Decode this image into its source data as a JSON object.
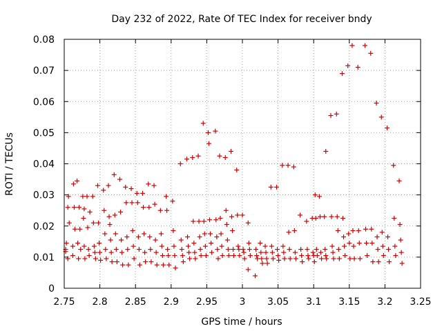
{
  "chart_data": {
    "type": "scatter",
    "title": "Day 232 of 2022, Rate Of TEC Index for receiver bndy",
    "xlabel": "GPS time / hours",
    "ylabel": "ROTI / TECUs",
    "xlim": [
      2.75,
      3.25
    ],
    "ylim": [
      0,
      0.08
    ],
    "xticks": [
      "2.75",
      "2.8",
      "2.85",
      "2.9",
      "2.95",
      "3",
      "3.05",
      "3.1",
      "3.15",
      "3.2",
      "3.25"
    ],
    "yticks": [
      "0",
      "0.01",
      "0.02",
      "0.03",
      "0.04",
      "0.05",
      "0.06",
      "0.07",
      "0.08"
    ],
    "grid": true,
    "marker": "plus",
    "color": "#cc0000",
    "series": [
      {
        "name": "ROTI",
        "points": [
          [
            2.752,
            0.0125
          ],
          [
            2.752,
            0.0118
          ],
          [
            2.755,
            0.0095
          ],
          [
            2.755,
            0.026
          ],
          [
            2.756,
            0.0295
          ],
          [
            2.757,
            0.021
          ],
          [
            2.753,
            0.0145
          ],
          [
            2.762,
            0.0135
          ],
          [
            2.762,
            0.0105
          ],
          [
            2.763,
            0.0335
          ],
          [
            2.764,
            0.026
          ],
          [
            2.765,
            0.019
          ],
          [
            2.768,
            0.0345
          ],
          [
            2.769,
            0.0145
          ],
          [
            2.77,
            0.0095
          ],
          [
            2.771,
            0.026
          ],
          [
            2.772,
            0.019
          ],
          [
            2.773,
            0.0125
          ],
          [
            2.776,
            0.0295
          ],
          [
            2.777,
            0.0225
          ],
          [
            2.778,
            0.0255
          ],
          [
            2.778,
            0.0135
          ],
          [
            2.779,
            0.0095
          ],
          [
            2.782,
            0.0295
          ],
          [
            2.783,
            0.0195
          ],
          [
            2.784,
            0.0125
          ],
          [
            2.785,
            0.0105
          ],
          [
            2.786,
            0.0245
          ],
          [
            2.79,
            0.0295
          ],
          [
            2.791,
            0.021
          ],
          [
            2.792,
            0.0135
          ],
          [
            2.793,
            0.0115
          ],
          [
            2.794,
            0.0095
          ],
          [
            2.797,
            0.033
          ],
          [
            2.798,
            0.021
          ],
          [
            2.799,
            0.0145
          ],
          [
            2.8,
            0.0115
          ],
          [
            2.801,
            0.009
          ],
          [
            2.805,
            0.0315
          ],
          [
            2.806,
            0.025
          ],
          [
            2.807,
            0.0175
          ],
          [
            2.808,
            0.0125
          ],
          [
            2.809,
            0.0095
          ],
          [
            2.812,
            0.033
          ],
          [
            2.813,
            0.023
          ],
          [
            2.814,
            0.0205
          ],
          [
            2.815,
            0.0155
          ],
          [
            2.816,
            0.0115
          ],
          [
            2.817,
            0.0085
          ],
          [
            2.82,
            0.0365
          ],
          [
            2.821,
            0.0235
          ],
          [
            2.822,
            0.0175
          ],
          [
            2.823,
            0.0125
          ],
          [
            2.824,
            0.0085
          ],
          [
            2.828,
            0.035
          ],
          [
            2.829,
            0.0245
          ],
          [
            2.83,
            0.0155
          ],
          [
            2.831,
            0.0115
          ],
          [
            2.832,
            0.0075
          ],
          [
            2.836,
            0.0325
          ],
          [
            2.837,
            0.0275
          ],
          [
            2.838,
            0.0165
          ],
          [
            2.839,
            0.0125
          ],
          [
            2.84,
            0.0075
          ],
          [
            2.844,
            0.032
          ],
          [
            2.845,
            0.0275
          ],
          [
            2.846,
            0.0185
          ],
          [
            2.847,
            0.0135
          ],
          [
            2.848,
            0.0095
          ],
          [
            2.852,
            0.0305
          ],
          [
            2.853,
            0.0275
          ],
          [
            2.854,
            0.0165
          ],
          [
            2.855,
            0.0125
          ],
          [
            2.856,
            0.0075
          ],
          [
            2.86,
            0.0305
          ],
          [
            2.861,
            0.026
          ],
          [
            2.862,
            0.0175
          ],
          [
            2.863,
            0.0115
          ],
          [
            2.864,
            0.0085
          ],
          [
            2.868,
            0.0335
          ],
          [
            2.869,
            0.026
          ],
          [
            2.87,
            0.0165
          ],
          [
            2.871,
            0.0125
          ],
          [
            2.872,
            0.0085
          ],
          [
            2.876,
            0.033
          ],
          [
            2.877,
            0.027
          ],
          [
            2.878,
            0.0155
          ],
          [
            2.879,
            0.0115
          ],
          [
            2.88,
            0.0075
          ],
          [
            2.885,
            0.025
          ],
          [
            2.886,
            0.0175
          ],
          [
            2.887,
            0.0135
          ],
          [
            2.888,
            0.0105
          ],
          [
            2.889,
            0.0075
          ],
          [
            2.893,
            0.0295
          ],
          [
            2.894,
            0.025
          ],
          [
            2.895,
            0.0125
          ],
          [
            2.896,
            0.0105
          ],
          [
            2.897,
            0.0075
          ],
          [
            2.902,
            0.028
          ],
          [
            2.903,
            0.0185
          ],
          [
            2.904,
            0.0135
          ],
          [
            2.905,
            0.0105
          ],
          [
            2.906,
            0.0065
          ],
          [
            2.913,
            0.04
          ],
          [
            2.914,
            0.0155
          ],
          [
            2.915,
            0.0125
          ],
          [
            2.916,
            0.0105
          ],
          [
            2.917,
            0.0085
          ],
          [
            2.922,
            0.0415
          ],
          [
            2.923,
            0.0165
          ],
          [
            2.924,
            0.0135
          ],
          [
            2.925,
            0.0115
          ],
          [
            2.926,
            0.0095
          ],
          [
            2.93,
            0.042
          ],
          [
            2.931,
            0.0215
          ],
          [
            2.932,
            0.0145
          ],
          [
            2.933,
            0.0115
          ],
          [
            2.934,
            0.0095
          ],
          [
            2.938,
            0.0425
          ],
          [
            2.939,
            0.0215
          ],
          [
            2.94,
            0.0165
          ],
          [
            2.941,
            0.0125
          ],
          [
            2.942,
            0.0105
          ],
          [
            2.945,
            0.053
          ],
          [
            2.946,
            0.0215
          ],
          [
            2.947,
            0.0175
          ],
          [
            2.948,
            0.0135
          ],
          [
            2.949,
            0.0105
          ],
          [
            2.952,
            0.05
          ],
          [
            2.953,
            0.0465
          ],
          [
            2.954,
            0.022
          ],
          [
            2.955,
            0.0175
          ],
          [
            2.956,
            0.0145
          ],
          [
            2.957,
            0.0115
          ],
          [
            2.962,
            0.0505
          ],
          [
            2.963,
            0.022
          ],
          [
            2.964,
            0.0165
          ],
          [
            2.965,
            0.0125
          ],
          [
            2.966,
            0.0095
          ],
          [
            2.968,
            0.0425
          ],
          [
            2.969,
            0.0225
          ],
          [
            2.97,
            0.0175
          ],
          [
            2.971,
            0.0135
          ],
          [
            2.972,
            0.0105
          ],
          [
            2.976,
            0.042
          ],
          [
            2.977,
            0.025
          ],
          [
            2.978,
            0.0205
          ],
          [
            2.979,
            0.0155
          ],
          [
            2.98,
            0.0125
          ],
          [
            2.981,
            0.0105
          ],
          [
            2.984,
            0.044
          ],
          [
            2.985,
            0.023
          ],
          [
            2.986,
            0.0185
          ],
          [
            2.987,
            0.0125
          ],
          [
            2.988,
            0.0105
          ],
          [
            2.992,
            0.038
          ],
          [
            2.993,
            0.0235
          ],
          [
            2.994,
            0.0135
          ],
          [
            2.995,
            0.0125
          ],
          [
            2.996,
            0.0105
          ],
          [
            3.0,
            0.0235
          ],
          [
            3.001,
            0.0125
          ],
          [
            3.002,
            0.0115
          ],
          [
            3.003,
            0.0095
          ],
          [
            3.008,
            0.021
          ],
          [
            3.009,
            0.0145
          ],
          [
            3.01,
            0.0125
          ],
          [
            3.011,
            0.0105
          ],
          [
            3.008,
            0.006
          ],
          [
            3.018,
            0.004
          ],
          [
            3.019,
            0.0125
          ],
          [
            3.02,
            0.0105
          ],
          [
            3.021,
            0.0095
          ],
          [
            3.025,
            0.0145
          ],
          [
            3.026,
            0.0115
          ],
          [
            3.027,
            0.0095
          ],
          [
            3.028,
            0.008
          ],
          [
            3.032,
            0.0135
          ],
          [
            3.033,
            0.0115
          ],
          [
            3.034,
            0.0095
          ],
          [
            3.035,
            0.008
          ],
          [
            3.04,
            0.0325
          ],
          [
            3.041,
            0.0135
          ],
          [
            3.042,
            0.0115
          ],
          [
            3.043,
            0.0095
          ],
          [
            3.048,
            0.0325
          ],
          [
            3.049,
            0.0125
          ],
          [
            3.05,
            0.0105
          ],
          [
            3.051,
            0.009
          ],
          [
            3.056,
            0.0395
          ],
          [
            3.057,
            0.0135
          ],
          [
            3.058,
            0.0115
          ],
          [
            3.059,
            0.0095
          ],
          [
            3.064,
            0.0395
          ],
          [
            3.065,
            0.018
          ],
          [
            3.066,
            0.0125
          ],
          [
            3.067,
            0.0095
          ],
          [
            3.072,
            0.039
          ],
          [
            3.073,
            0.0185
          ],
          [
            3.074,
            0.0115
          ],
          [
            3.075,
            0.0095
          ],
          [
            3.081,
            0.0235
          ],
          [
            3.082,
            0.0125
          ],
          [
            3.083,
            0.0105
          ],
          [
            3.084,
            0.0085
          ],
          [
            3.09,
            0.0215
          ],
          [
            3.091,
            0.0125
          ],
          [
            3.092,
            0.0105
          ],
          [
            3.093,
            0.0095
          ],
          [
            3.098,
            0.0225
          ],
          [
            3.099,
            0.0115
          ],
          [
            3.1,
            0.0105
          ],
          [
            3.101,
            0.0085
          ],
          [
            3.102,
            0.03
          ],
          [
            3.103,
            0.0225
          ],
          [
            3.104,
            0.0125
          ],
          [
            3.105,
            0.0105
          ],
          [
            3.108,
            0.0295
          ],
          [
            3.109,
            0.023
          ],
          [
            3.11,
            0.0115
          ],
          [
            3.111,
            0.0095
          ],
          [
            3.115,
            0.023
          ],
          [
            3.116,
            0.0125
          ],
          [
            3.117,
            0.0105
          ],
          [
            3.118,
            0.0095
          ],
          [
            3.117,
            0.044
          ],
          [
            3.124,
            0.0555
          ],
          [
            3.125,
            0.023
          ],
          [
            3.126,
            0.0135
          ],
          [
            3.127,
            0.0115
          ],
          [
            3.128,
            0.0095
          ],
          [
            3.132,
            0.056
          ],
          [
            3.133,
            0.023
          ],
          [
            3.134,
            0.0185
          ],
          [
            3.135,
            0.0125
          ],
          [
            3.136,
            0.0095
          ],
          [
            3.14,
            0.069
          ],
          [
            3.141,
            0.0225
          ],
          [
            3.142,
            0.0165
          ],
          [
            3.143,
            0.0135
          ],
          [
            3.144,
            0.0105
          ],
          [
            3.148,
            0.0715
          ],
          [
            3.149,
            0.0175
          ],
          [
            3.15,
            0.0145
          ],
          [
            3.151,
            0.0095
          ],
          [
            3.154,
            0.078
          ],
          [
            3.155,
            0.0185
          ],
          [
            3.156,
            0.0135
          ],
          [
            3.157,
            0.0095
          ],
          [
            3.162,
            0.071
          ],
          [
            3.163,
            0.0185
          ],
          [
            3.164,
            0.0145
          ],
          [
            3.165,
            0.0095
          ],
          [
            3.172,
            0.078
          ],
          [
            3.173,
            0.019
          ],
          [
            3.174,
            0.0145
          ],
          [
            3.175,
            0.0105
          ],
          [
            3.18,
            0.0755
          ],
          [
            3.181,
            0.019
          ],
          [
            3.182,
            0.0145
          ],
          [
            3.183,
            0.0085
          ],
          [
            3.188,
            0.0595
          ],
          [
            3.189,
            0.0165
          ],
          [
            3.19,
            0.0125
          ],
          [
            3.191,
            0.0085
          ],
          [
            3.195,
            0.055
          ],
          [
            3.196,
            0.018
          ],
          [
            3.197,
            0.0135
          ],
          [
            3.198,
            0.0105
          ],
          [
            3.203,
            0.0515
          ],
          [
            3.204,
            0.0165
          ],
          [
            3.205,
            0.0125
          ],
          [
            3.206,
            0.0085
          ],
          [
            3.212,
            0.0395
          ],
          [
            3.213,
            0.0225
          ],
          [
            3.214,
            0.0135
          ],
          [
            3.215,
            0.0105
          ],
          [
            3.22,
            0.0345
          ],
          [
            3.221,
            0.0205
          ],
          [
            3.222,
            0.0155
          ],
          [
            3.223,
            0.0115
          ],
          [
            3.224,
            0.008
          ]
        ]
      }
    ]
  }
}
